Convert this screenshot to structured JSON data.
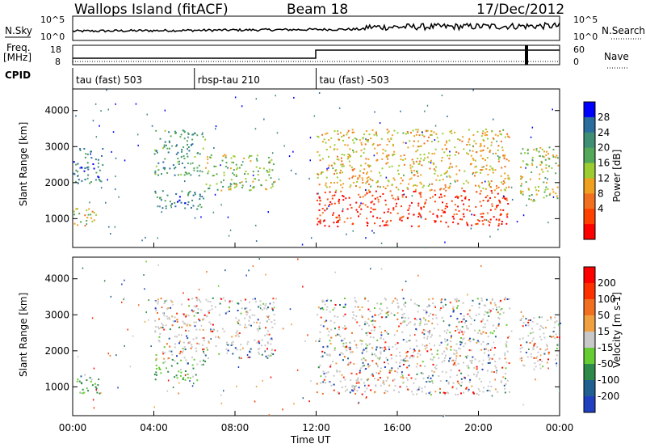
{
  "header": {
    "station": "Wallops Island (fitACF)",
    "beam": "Beam 18",
    "date": "17/Dec/2012"
  },
  "noise_panel": {
    "left_label": "N.Sky",
    "right_label": "N.Search",
    "left_ticks": [
      "10^5",
      "10^0"
    ],
    "right_ticks": [
      "10^5",
      "10^0"
    ]
  },
  "freq_panel": {
    "left_label_line1": "Freq.",
    "left_label_line2": "[MHz]",
    "right_label": "Nave",
    "left_ticks": [
      "18",
      "8"
    ],
    "right_ticks": [
      "60",
      "0"
    ]
  },
  "cpid": {
    "label": "CPID",
    "segments": [
      {
        "label": "tau (fast) 503",
        "start_hour": 0
      },
      {
        "label": "rbsp-tau 210",
        "start_hour": 6
      },
      {
        "label": "tau (fast) -503",
        "start_hour": 12
      }
    ]
  },
  "colors": {
    "power_scale": [
      "#0000ff",
      "#2b6e9e",
      "#3f8f74",
      "#54a85a",
      "#9ccc2f",
      "#f0a020",
      "#f07020",
      "#ff4000",
      "#ff0000"
    ],
    "velocity_scale": [
      "#2040c0",
      "#206090",
      "#2e8a4a",
      "#66cc33",
      "#c8c8c8",
      "#f0a040",
      "#f07020",
      "#ff3000",
      "#ff0000"
    ],
    "ground_grey": "#c8c8c8"
  },
  "chart_data": [
    {
      "type": "heatmap",
      "name": "power",
      "ylabel": "Slant Range [km]",
      "xlabel": "Time UT",
      "xlim": [
        0,
        24
      ],
      "ylim": [
        200,
        4600
      ],
      "yticks": [
        "1000",
        "2000",
        "3000",
        "4000"
      ],
      "xticks": [
        "00:00",
        "04:00",
        "08:00",
        "12:00",
        "16:00",
        "20:00",
        "00:00"
      ],
      "colorbar": {
        "label": "Power [dB]",
        "ticks": [
          "28",
          "24",
          "20",
          "16",
          "12",
          "8",
          "4"
        ]
      },
      "regions": [
        {
          "t0": 0.0,
          "t1": 1.3,
          "r0": 800,
          "r1": 1300,
          "level": 0.55
        },
        {
          "t0": 0.0,
          "t1": 1.5,
          "r0": 2000,
          "r1": 3000,
          "level": 0.2
        },
        {
          "t0": 4.0,
          "t1": 6.5,
          "r0": 1200,
          "r1": 1800,
          "level": 0.2
        },
        {
          "t0": 4.0,
          "t1": 6.5,
          "r0": 2200,
          "r1": 3500,
          "level": 0.3
        },
        {
          "t0": 6.5,
          "t1": 10.0,
          "r0": 1800,
          "r1": 2800,
          "level": 0.45
        },
        {
          "t0": 12.0,
          "t1": 21.5,
          "r0": 800,
          "r1": 1800,
          "level": 0.92
        },
        {
          "t0": 12.0,
          "t1": 21.5,
          "r0": 1800,
          "r1": 3500,
          "level": 0.6
        },
        {
          "t0": 22.0,
          "t1": 24.0,
          "r0": 1500,
          "r1": 3000,
          "level": 0.5
        }
      ]
    },
    {
      "type": "heatmap",
      "name": "velocity",
      "ylabel": "Slant Range [km]",
      "xlabel": "Time UT",
      "xlim": [
        0,
        24
      ],
      "ylim": [
        200,
        4600
      ],
      "yticks": [
        "1000",
        "2000",
        "3000",
        "4000"
      ],
      "xticks": [
        "00:00",
        "04:00",
        "08:00",
        "12:00",
        "16:00",
        "20:00",
        "00:00"
      ],
      "colorbar": {
        "label": "Velocity [m s-1]",
        "ticks": [
          "200",
          "100",
          "50",
          "15",
          "-15",
          "-50",
          "-100",
          "-200"
        ]
      },
      "regions": [
        {
          "t0": 0.0,
          "t1": 1.3,
          "r0": 800,
          "r1": 1400,
          "level": 0.15
        },
        {
          "t0": 4.0,
          "t1": 6.5,
          "r0": 1200,
          "r1": 1800,
          "level": 0.2
        },
        {
          "t0": 4.0,
          "t1": 10.0,
          "r0": 1800,
          "r1": 3500,
          "level": 0.5
        },
        {
          "t0": 12.0,
          "t1": 21.5,
          "r0": 800,
          "r1": 3500,
          "level": 0.5
        },
        {
          "t0": 22.0,
          "t1": 24.0,
          "r0": 1500,
          "r1": 3000,
          "level": 0.5
        }
      ]
    }
  ]
}
